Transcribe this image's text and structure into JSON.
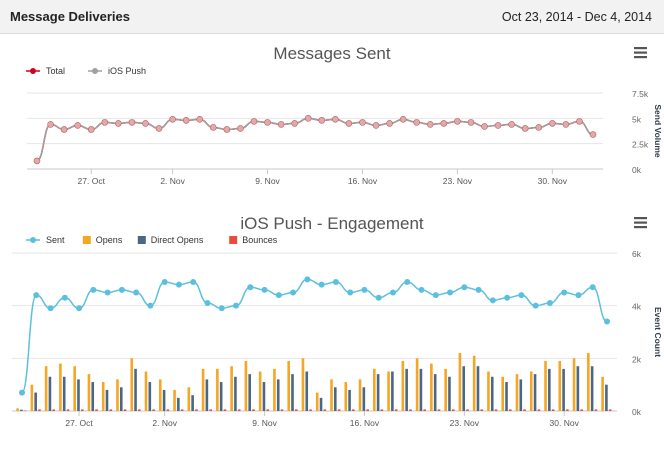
{
  "header": {
    "title": "Message Deliveries",
    "date_range": "Oct 23, 2014 - Dec 4, 2014"
  },
  "icons": {
    "menu": "hamburger-menu-icon"
  },
  "chart_data": [
    {
      "type": "line",
      "title": "Messages Sent",
      "ylabel": "Send Volume",
      "ylim": [
        0,
        7500
      ],
      "yticks": [
        "0k",
        "2.5k",
        "5k",
        "7.5k"
      ],
      "ytick_values": [
        0,
        2500,
        5000,
        7500
      ],
      "xtick_labels": [
        "27. Oct",
        "2. Nov",
        "9. Nov",
        "16. Nov",
        "23. Nov",
        "30. Nov"
      ],
      "xtick_days": [
        4,
        10,
        17,
        24,
        31,
        38
      ],
      "grid": true,
      "legend_position": "top-left",
      "x_days": [
        0,
        1,
        2,
        3,
        4,
        5,
        6,
        7,
        8,
        9,
        10,
        11,
        12,
        13,
        14,
        15,
        16,
        17,
        18,
        19,
        20,
        21,
        22,
        23,
        24,
        25,
        26,
        27,
        28,
        29,
        30,
        31,
        32,
        33,
        34,
        35,
        36,
        37,
        38,
        39,
        40,
        41
      ],
      "series": [
        {
          "name": "Total",
          "color": "#d0021b",
          "values": [
            800,
            4400,
            3900,
            4300,
            3900,
            4600,
            4500,
            4600,
            4500,
            4000,
            4900,
            4800,
            4900,
            4100,
            3900,
            4000,
            4700,
            4600,
            4400,
            4500,
            5000,
            4800,
            4900,
            4500,
            4600,
            4300,
            4500,
            4900,
            4600,
            4400,
            4500,
            4700,
            4600,
            4200,
            4300,
            4400,
            4000,
            4100,
            4500,
            4400,
            4700,
            3400
          ],
          "marker": false
        },
        {
          "name": "iOS Push",
          "color": "#a0a0a0",
          "marker_color": "#e4a8a8",
          "values": [
            800,
            4400,
            3900,
            4300,
            3900,
            4600,
            4500,
            4600,
            4500,
            4000,
            4900,
            4800,
            4900,
            4100,
            3900,
            4000,
            4700,
            4600,
            4400,
            4500,
            5000,
            4800,
            4900,
            4500,
            4600,
            4300,
            4500,
            4900,
            4600,
            4400,
            4500,
            4700,
            4600,
            4200,
            4300,
            4400,
            4000,
            4100,
            4500,
            4400,
            4700,
            3400
          ],
          "marker": true
        }
      ]
    },
    {
      "type": "bar",
      "title": "iOS Push - Engagement",
      "ylabel": "Event Count",
      "ylim": [
        0,
        6000
      ],
      "yticks": [
        "0k",
        "2k",
        "4k",
        "6k"
      ],
      "ytick_values": [
        0,
        2000,
        4000,
        6000
      ],
      "xtick_labels": [
        "27. Oct",
        "2. Nov",
        "9. Nov",
        "16. Nov",
        "23. Nov",
        "30. Nov"
      ],
      "xtick_days": [
        4,
        10,
        17,
        24,
        31,
        38
      ],
      "grid": true,
      "legend_position": "top-left",
      "x_days": [
        0,
        1,
        2,
        3,
        4,
        5,
        6,
        7,
        8,
        9,
        10,
        11,
        12,
        13,
        14,
        15,
        16,
        17,
        18,
        19,
        20,
        21,
        22,
        23,
        24,
        25,
        26,
        27,
        28,
        29,
        30,
        31,
        32,
        33,
        34,
        35,
        36,
        37,
        38,
        39,
        40,
        41
      ],
      "series": [
        {
          "name": "Sent",
          "kind": "line",
          "color": "#5bc0de",
          "values": [
            700,
            4400,
            3900,
            4300,
            3900,
            4600,
            4500,
            4600,
            4500,
            4000,
            4900,
            4800,
            4900,
            4100,
            3900,
            4000,
            4700,
            4600,
            4400,
            4500,
            5000,
            4800,
            4900,
            4500,
            4600,
            4300,
            4500,
            4900,
            4600,
            4400,
            4500,
            4700,
            4600,
            4200,
            4300,
            4400,
            4000,
            4100,
            4500,
            4400,
            4700,
            3400
          ]
        },
        {
          "name": "Opens",
          "kind": "bar",
          "color": "#f5a623",
          "values": [
            100,
            1000,
            1700,
            1800,
            1700,
            1400,
            1100,
            1200,
            2000,
            1500,
            1200,
            800,
            900,
            1600,
            1600,
            1700,
            1900,
            1500,
            1600,
            1900,
            2000,
            700,
            1200,
            1100,
            1200,
            1600,
            1500,
            1900,
            2000,
            1800,
            1600,
            2200,
            2100,
            1500,
            1300,
            1400,
            1500,
            1900,
            1900,
            2000,
            2200,
            1300
          ],
          "marker": false
        },
        {
          "name": "Direct Opens",
          "kind": "bar",
          "color": "#4a6784",
          "values": [
            50,
            700,
            1300,
            1300,
            1200,
            1100,
            800,
            900,
            1600,
            1100,
            800,
            500,
            600,
            1200,
            1100,
            1300,
            1400,
            1100,
            1200,
            1400,
            1500,
            500,
            900,
            800,
            900,
            1400,
            1500,
            1600,
            1600,
            1400,
            1300,
            1700,
            1700,
            1300,
            1100,
            1200,
            1400,
            1600,
            1600,
            1700,
            1700,
            1000
          ]
        },
        {
          "name": "Bounces",
          "kind": "bar",
          "color": "#e74c3c",
          "values": [
            20,
            60,
            60,
            60,
            60,
            60,
            60,
            60,
            60,
            60,
            60,
            60,
            60,
            60,
            60,
            60,
            60,
            60,
            60,
            60,
            60,
            60,
            60,
            60,
            60,
            60,
            60,
            60,
            60,
            60,
            60,
            60,
            60,
            60,
            60,
            60,
            60,
            60,
            60,
            60,
            60,
            60
          ]
        }
      ]
    }
  ]
}
